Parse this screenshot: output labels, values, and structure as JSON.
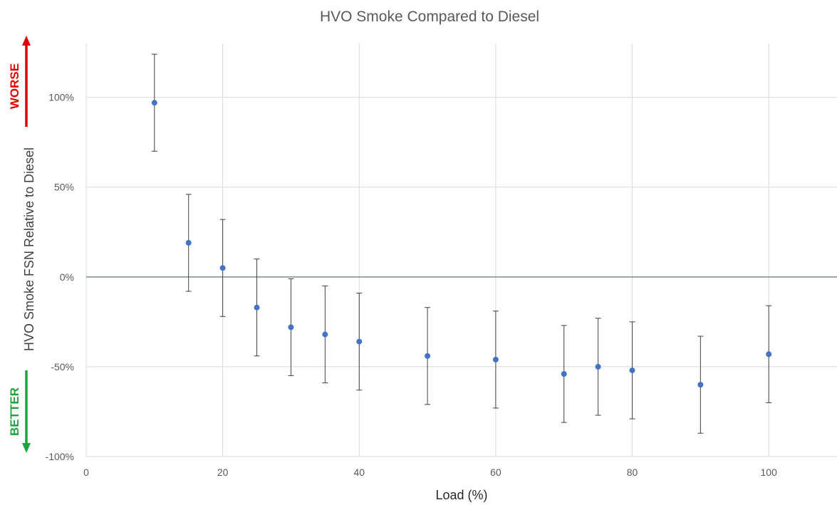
{
  "chart_data": {
    "type": "scatter",
    "title": "HVO Smoke Compared to Diesel",
    "xlabel": "Load (%)",
    "ylabel": "HVO Smoke FSN Relative to Diesel",
    "xlim": [
      0,
      110
    ],
    "ylim": [
      -100,
      130
    ],
    "x_ticks": [
      0,
      20,
      40,
      60,
      80,
      100
    ],
    "x_tick_labels": [
      "0",
      "20",
      "40",
      "60",
      "80",
      "100"
    ],
    "y_ticks": [
      -100,
      -50,
      0,
      50,
      100
    ],
    "y_tick_labels": [
      "-100%",
      "-50%",
      "0%",
      "50%",
      "100%"
    ],
    "grid": true,
    "zero_line": true,
    "series": [
      {
        "marker_color": "#4472c4",
        "error_bar": 27,
        "points": [
          {
            "x": 10,
            "y": 97
          },
          {
            "x": 15,
            "y": 19
          },
          {
            "x": 20,
            "y": 5
          },
          {
            "x": 25,
            "y": -17
          },
          {
            "x": 30,
            "y": -28
          },
          {
            "x": 35,
            "y": -32
          },
          {
            "x": 40,
            "y": -36
          },
          {
            "x": 50,
            "y": -44
          },
          {
            "x": 60,
            "y": -46
          },
          {
            "x": 70,
            "y": -54
          },
          {
            "x": 75,
            "y": -50
          },
          {
            "x": 80,
            "y": -52
          },
          {
            "x": 90,
            "y": -60
          },
          {
            "x": 100,
            "y": -43
          }
        ]
      }
    ],
    "annotations": {
      "worse": {
        "text": "WORSE",
        "color": "#e00000"
      },
      "better": {
        "text": "BETTER",
        "color": "#1fa33f"
      }
    }
  }
}
